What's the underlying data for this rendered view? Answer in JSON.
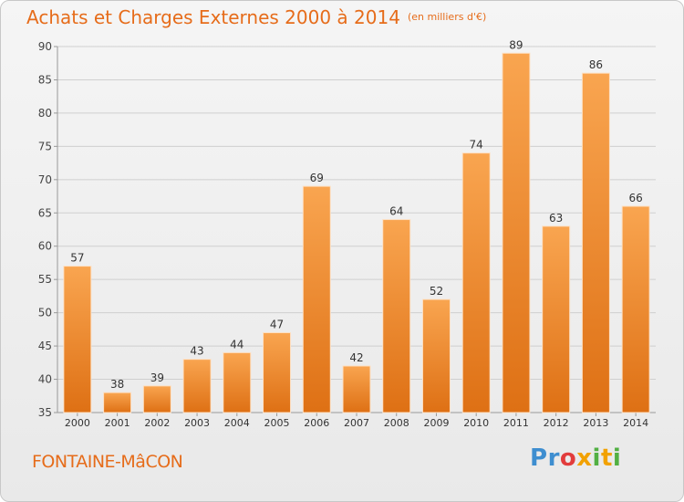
{
  "header": {
    "title": "Achats et Charges Externes 2000 à 2014",
    "unit": "(en milliers d'€)"
  },
  "footer": {
    "town": "FONTAINE-MâCON",
    "brand_letters": [
      "P",
      "r",
      "o",
      "x",
      "i",
      "t",
      "i"
    ]
  },
  "colors": {
    "accent": "#e66c1a",
    "bar_light": "#f9a550",
    "bar_dark": "#de7014",
    "grid": "#cfcfcf",
    "brand": [
      "#3e8ed0",
      "#3e8ed0",
      "#e23c3c",
      "#f2a100",
      "#52b043",
      "#f2a100",
      "#52b043"
    ]
  },
  "chart_data": {
    "type": "bar",
    "title": "Achats et Charges Externes 2000 à 2014",
    "subtitle": "(en milliers d'€)",
    "categories": [
      "2000",
      "2001",
      "2002",
      "2003",
      "2004",
      "2005",
      "2006",
      "2007",
      "2008",
      "2009",
      "2010",
      "2011",
      "2012",
      "2013",
      "2014"
    ],
    "values": [
      57,
      38,
      39,
      43,
      44,
      47,
      69,
      42,
      64,
      52,
      74,
      89,
      63,
      86,
      66
    ],
    "xlabel": "",
    "ylabel": "",
    "ylim": [
      35,
      90
    ],
    "yticks": [
      35,
      40,
      45,
      50,
      55,
      60,
      65,
      70,
      75,
      80,
      85,
      90
    ],
    "grid": true,
    "data_labels": true
  }
}
